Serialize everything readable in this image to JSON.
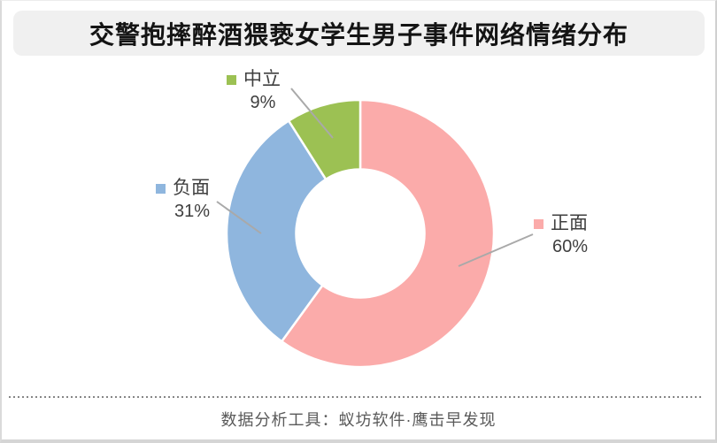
{
  "page": {
    "title": "交警抱摔醉酒猥亵女学生男子事件网络情绪分布",
    "footer": "数据分析工具：蚁坊软件·鹰击早发现"
  },
  "chart_data": {
    "type": "pie",
    "subtype": "donut",
    "title": "交警抱摔醉酒猥亵女学生男子事件网络情绪分布",
    "start_angle_deg": -90,
    "direction": "clockwise",
    "inner_radius_ratio": 0.48,
    "background": "#FFFFFF",
    "legend_position": "callouts-with-leader-lines",
    "slices": [
      {
        "name": "正面",
        "value": 60,
        "percent_label": "60%",
        "color": "#FBABAA"
      },
      {
        "name": "负面",
        "value": 31,
        "percent_label": "31%",
        "color": "#8FB6DE"
      },
      {
        "name": "中立",
        "value": 9,
        "percent_label": "9%",
        "color": "#9CC153"
      }
    ],
    "slice_gap_color": "#FFFFFF",
    "leader_line_color": "#A9A9A9",
    "label_text_color": "#3F3F3F"
  }
}
